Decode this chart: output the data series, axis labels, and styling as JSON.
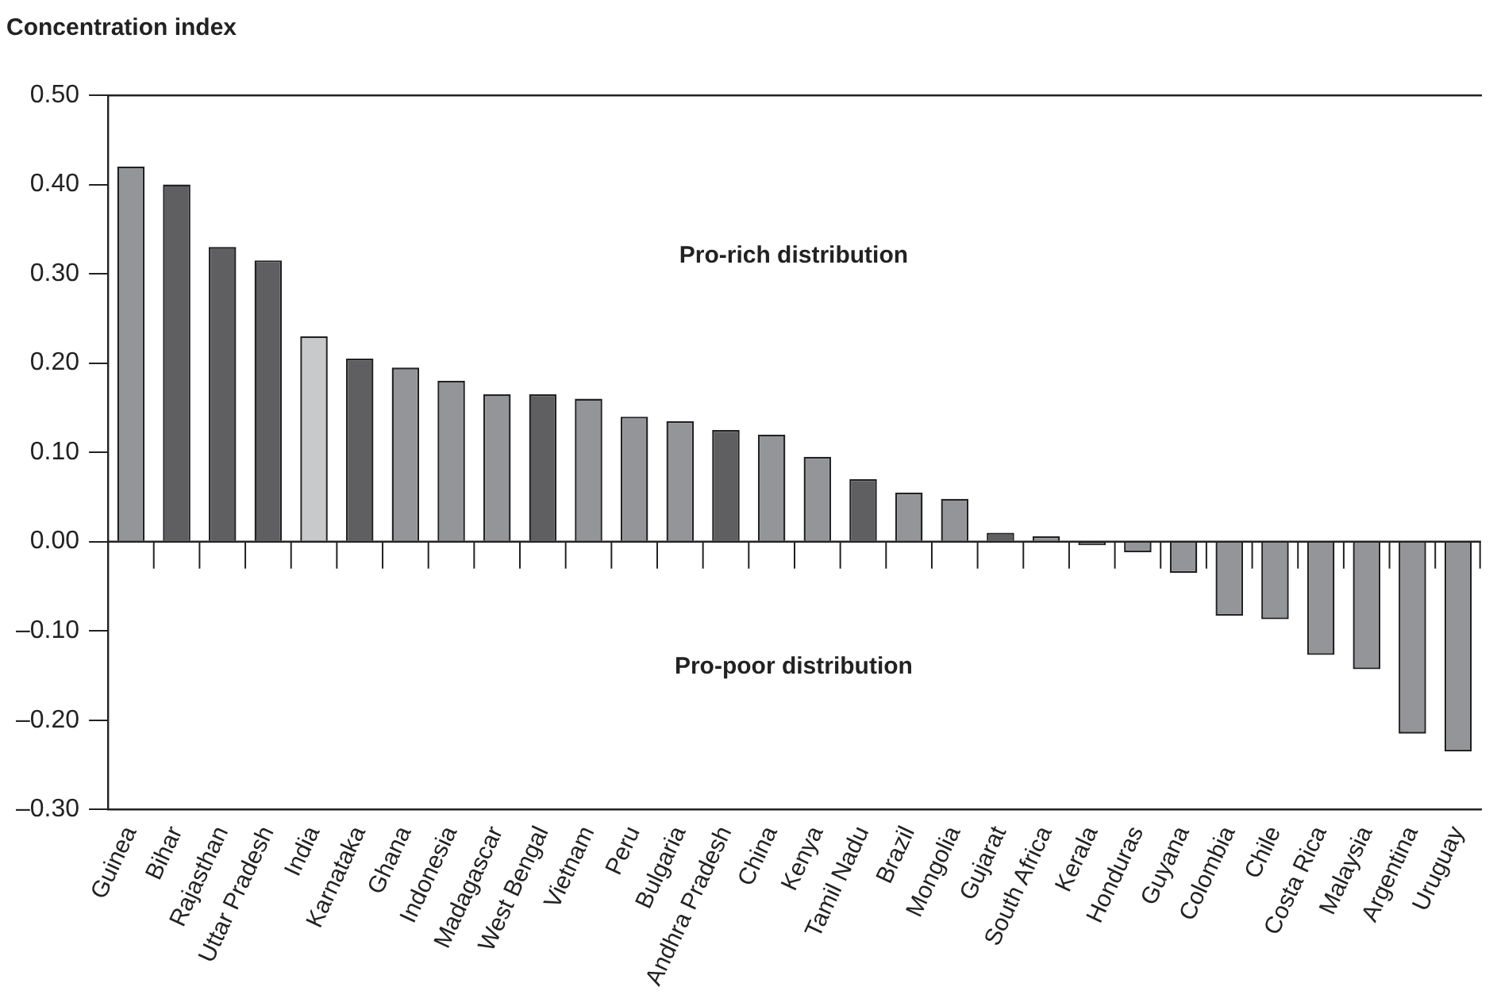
{
  "chart_data": {
    "type": "bar",
    "ylabel": "Concentration index",
    "categories": [
      "Guinea",
      "Bihar",
      "Rajasthan",
      "Uttar Pradesh",
      "India",
      "Karnataka",
      "Ghana",
      "Indonesia",
      "Madagascar",
      "West Bengal",
      "Vietnam",
      "Peru",
      "Bulgaria",
      "Andhra Pradesh",
      "China",
      "Kenya",
      "Tamil Nadu",
      "Brazil",
      "Mongolia",
      "Gujarat",
      "South Africa",
      "Kerala",
      "Honduras",
      "Guyana",
      "Colombia",
      "Chile",
      "Costa Rica",
      "Malaysia",
      "Argentina",
      "Uruguay"
    ],
    "values": [
      0.42,
      0.4,
      0.33,
      0.315,
      0.23,
      0.205,
      0.195,
      0.18,
      0.165,
      0.165,
      0.16,
      0.14,
      0.135,
      0.125,
      0.12,
      0.095,
      0.07,
      0.055,
      0.048,
      0.01,
      0.006,
      -0.004,
      -0.012,
      -0.035,
      -0.083,
      -0.087,
      -0.127,
      -0.143,
      -0.215,
      -0.235
    ],
    "colors": [
      "#949598",
      "#5f5f61",
      "#5f5f61",
      "#5f5f61",
      "#c8c9cb",
      "#5f5f61",
      "#949598",
      "#949598",
      "#949598",
      "#5f5f61",
      "#949598",
      "#949598",
      "#949598",
      "#5f5f61",
      "#949598",
      "#949598",
      "#5f5f61",
      "#949598",
      "#949598",
      "#5f5f61",
      "#949598",
      "#5f5f61",
      "#949598",
      "#949598",
      "#949598",
      "#949598",
      "#949598",
      "#949598",
      "#949598",
      "#949598"
    ],
    "ylim": [
      -0.3,
      0.5
    ],
    "yticks": [
      {
        "value": -0.3,
        "label": "–0.30"
      },
      {
        "value": -0.2,
        "label": "–0.20"
      },
      {
        "value": -0.1,
        "label": "–0.10"
      },
      {
        "value": 0,
        "label": "0.00"
      },
      {
        "value": 0.1,
        "label": "0.10"
      },
      {
        "value": 0.2,
        "label": "0.20"
      },
      {
        "value": 0.3,
        "label": "0.30"
      },
      {
        "value": 0.4,
        "label": "0.40"
      },
      {
        "value": 0.5,
        "label": "0.50"
      }
    ],
    "annotations": [
      "Pro-rich distribution",
      "Pro-poor distribution"
    ],
    "ref_lines": [
      {
        "axis": "y",
        "value": 0,
        "color": "#222222"
      }
    ],
    "grid": false,
    "legend": false
  }
}
